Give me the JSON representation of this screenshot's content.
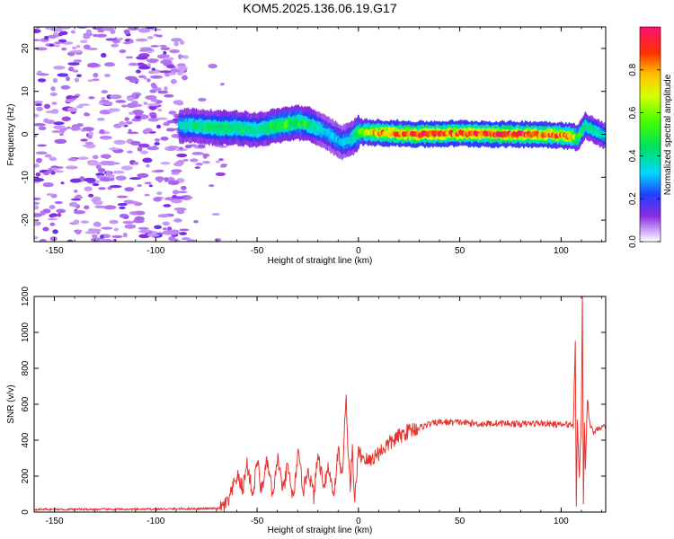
{
  "title": "KOM5.2025.136.06.19.G17",
  "chart_data": [
    {
      "type": "heatmap",
      "xlabel": "Height of straight line (km)",
      "ylabel": "Frequency (Hz)",
      "xlim": [
        -160,
        122
      ],
      "ylim": [
        -25,
        25
      ],
      "x_ticks": [
        -150,
        -100,
        -50,
        0,
        50,
        100
      ],
      "y_ticks": [
        -20,
        -10,
        0,
        10,
        20
      ],
      "colorbar": {
        "label": "Normalized spectral amplitude",
        "range": [
          0,
          1
        ],
        "ticks": [
          0.0,
          0.2,
          0.4,
          0.6,
          0.8
        ]
      },
      "ridge": {
        "x": [
          -88,
          -80,
          -70,
          -60,
          -50,
          -40,
          -30,
          -24,
          -15,
          -8,
          -3,
          0,
          10,
          30,
          50,
          70,
          90,
          100,
          106,
          108,
          112,
          118,
          122
        ],
        "y": [
          2,
          2,
          1.5,
          1.5,
          1,
          2,
          2.8,
          2.2,
          0.2,
          -2,
          -1,
          0.5,
          0.4,
          0,
          0.2,
          0,
          0,
          -0.2,
          -0.5,
          -1,
          2,
          0.5,
          -0.5
        ],
        "amp": [
          0.35,
          0.4,
          0.45,
          0.45,
          0.4,
          0.5,
          0.5,
          0.45,
          0.3,
          0.3,
          0.35,
          0.55,
          0.8,
          0.9,
          0.85,
          0.9,
          0.85,
          0.8,
          0.7,
          0.5,
          0.45,
          0.4,
          0.35
        ]
      }
    },
    {
      "type": "line",
      "xlabel": "Height of straight line (km)",
      "ylabel": "SNR (v/v)",
      "xlim": [
        -160,
        122
      ],
      "ylim": [
        0,
        1200
      ],
      "x_ticks": [
        -150,
        -100,
        -50,
        0,
        50,
        100
      ],
      "y_ticks": [
        0,
        200,
        400,
        600,
        800,
        1000,
        1200
      ],
      "color": "#e8352f",
      "series": [
        {
          "x": [
            -160,
            -110,
            -68,
            -64,
            -60,
            -57,
            -55,
            -52,
            -50,
            -48,
            -45,
            -42,
            -40,
            -37,
            -35,
            -32,
            -30,
            -27,
            -25,
            -22,
            -20,
            -17,
            -15,
            -12,
            -10,
            -8,
            -7,
            -6,
            -5,
            -4,
            -3,
            -2,
            0,
            5,
            10,
            15,
            20,
            25,
            30,
            35,
            40,
            50,
            60,
            70,
            80,
            90,
            100,
            104,
            106,
            107,
            107.5,
            108,
            109,
            110,
            110.5,
            111,
            111.5,
            112,
            113,
            114,
            116,
            118,
            122
          ],
          "y": [
            15,
            15,
            20,
            60,
            200,
            130,
            270,
            90,
            300,
            120,
            280,
            70,
            310,
            110,
            260,
            60,
            330,
            120,
            250,
            90,
            320,
            150,
            250,
            100,
            350,
            180,
            450,
            620,
            320,
            150,
            350,
            60,
            330,
            280,
            330,
            380,
            420,
            455,
            470,
            490,
            500,
            500,
            490,
            495,
            490,
            495,
            485,
            490,
            480,
            960,
            40,
            500,
            200,
            520,
            1220,
            60,
            480,
            250,
            640,
            500,
            440,
            470,
            470
          ]
        }
      ]
    }
  ]
}
